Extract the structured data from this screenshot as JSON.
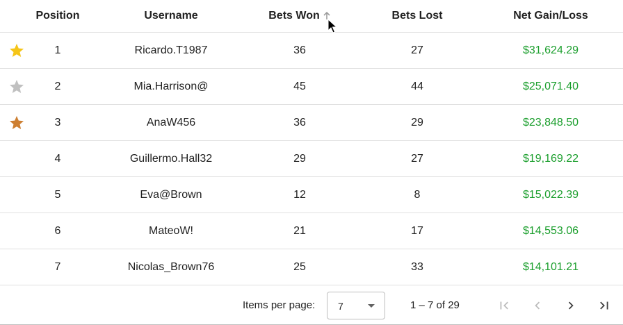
{
  "table": {
    "headers": {
      "position": "Position",
      "username": "Username",
      "bets_won": "Bets Won",
      "bets_lost": "Bets Lost",
      "net": "Net Gain/Loss"
    },
    "sort": {
      "column": "bets_won",
      "direction": "ascending-arrow-icon"
    },
    "rows": [
      {
        "position": "1",
        "username": "Ricardo.T1987",
        "won": "36",
        "lost": "27",
        "net": "$31,624.29",
        "star": "gold"
      },
      {
        "position": "2",
        "username": "Mia.Harrison@",
        "won": "45",
        "lost": "44",
        "net": "$25,071.40",
        "star": "silver"
      },
      {
        "position": "3",
        "username": "AnaW456",
        "won": "36",
        "lost": "29",
        "net": "$23,848.50",
        "star": "bronze"
      },
      {
        "position": "4",
        "username": "Guillermo.Hall32",
        "won": "29",
        "lost": "27",
        "net": "$19,169.22",
        "star": ""
      },
      {
        "position": "5",
        "username": "Eva@Brown",
        "won": "12",
        "lost": "8",
        "net": "$15,022.39",
        "star": ""
      },
      {
        "position": "6",
        "username": "MateoW!",
        "won": "21",
        "lost": "17",
        "net": "$14,553.06",
        "star": ""
      },
      {
        "position": "7",
        "username": "Nicolas_Brown76",
        "won": "25",
        "lost": "33",
        "net": "$14,101.21",
        "star": ""
      }
    ]
  },
  "colors": {
    "gold": "#f5c518",
    "silver": "#c0c0c0",
    "bronze": "#cd7f32",
    "money": "#1a9e2c"
  },
  "paginator": {
    "items_per_page_label": "Items per page:",
    "items_per_page_value": "7",
    "range_label": "1 – 7 of 29"
  }
}
